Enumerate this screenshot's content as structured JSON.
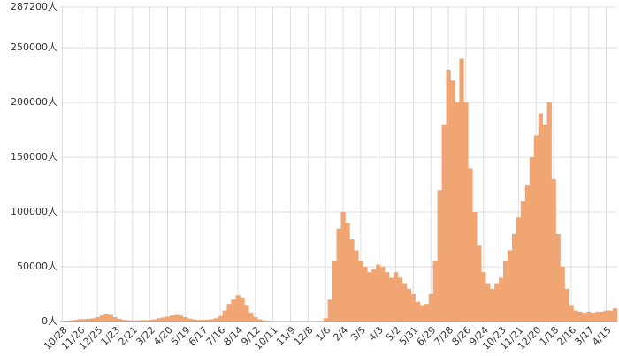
{
  "chart_data": {
    "type": "bar",
    "color": "#f0a572",
    "grid": true,
    "categories": [
      "10/28",
      null,
      null,
      null,
      "11/26",
      null,
      null,
      null,
      "12/25",
      null,
      null,
      null,
      "1/23",
      null,
      null,
      null,
      "2/21",
      null,
      null,
      null,
      "3/22",
      null,
      null,
      null,
      "4/20",
      null,
      null,
      null,
      "5/19",
      null,
      null,
      null,
      "6/17",
      null,
      null,
      null,
      "7/16",
      null,
      null,
      null,
      "8/14",
      null,
      null,
      null,
      "9/12",
      null,
      null,
      null,
      "10/11",
      null,
      null,
      null,
      "11/9",
      null,
      null,
      null,
      "12/8",
      null,
      null,
      null,
      "1/6",
      null,
      null,
      null,
      "2/4",
      null,
      null,
      null,
      "3/5",
      null,
      null,
      null,
      "4/3",
      null,
      null,
      null,
      "5/2",
      null,
      null,
      null,
      "5/31",
      null,
      null,
      null,
      "6/29",
      null,
      null,
      null,
      "7/28",
      null,
      null,
      null,
      "8/26",
      null,
      null,
      null,
      "9/24",
      null,
      null,
      null,
      "10/23",
      null,
      null,
      null,
      "11/21",
      null,
      null,
      null,
      "12/20",
      null,
      null,
      null,
      "1/18",
      null,
      null,
      null,
      "2/16",
      null,
      null,
      null,
      "3/17",
      null,
      null,
      null,
      "4/15",
      null,
      null
    ],
    "values": [
      500,
      700,
      1000,
      1500,
      2000,
      2200,
      2500,
      3000,
      4000,
      5500,
      7000,
      6000,
      4000,
      2500,
      1500,
      1200,
      1000,
      1000,
      1200,
      1300,
      1500,
      2000,
      3000,
      3800,
      4500,
      5500,
      6000,
      5500,
      4000,
      2800,
      2000,
      1500,
      1500,
      1700,
      2000,
      3000,
      5000,
      10000,
      16000,
      20000,
      24000,
      22000,
      15000,
      8000,
      4000,
      2000,
      1000,
      600,
      300,
      200,
      150,
      150,
      150,
      150,
      150,
      150,
      150,
      200,
      300,
      500,
      3000,
      20000,
      55000,
      85000,
      100000,
      90000,
      75000,
      65000,
      55000,
      50000,
      45000,
      48000,
      52000,
      50000,
      45000,
      40000,
      45000,
      40000,
      35000,
      30000,
      25000,
      18000,
      15000,
      16000,
      25000,
      55000,
      120000,
      180000,
      230000,
      220000,
      200000,
      240000,
      200000,
      140000,
      100000,
      70000,
      45000,
      35000,
      30000,
      35000,
      40000,
      55000,
      65000,
      80000,
      95000,
      110000,
      125000,
      150000,
      170000,
      190000,
      180000,
      200000,
      130000,
      80000,
      50000,
      30000,
      15000,
      10000,
      9000,
      8000,
      9000,
      8000,
      9000,
      9000,
      10000,
      10000,
      12000
    ],
    "ylim": [
      0,
      287200
    ],
    "yticks": [
      {
        "value": 0,
        "label": "0人"
      },
      {
        "value": 50000,
        "label": "50000人"
      },
      {
        "value": 100000,
        "label": "100000人"
      },
      {
        "value": 150000,
        "label": "150000人"
      },
      {
        "value": 200000,
        "label": "200000人"
      },
      {
        "value": 250000,
        "label": "250000人"
      },
      {
        "value": 287200,
        "label": "287200人"
      }
    ]
  }
}
